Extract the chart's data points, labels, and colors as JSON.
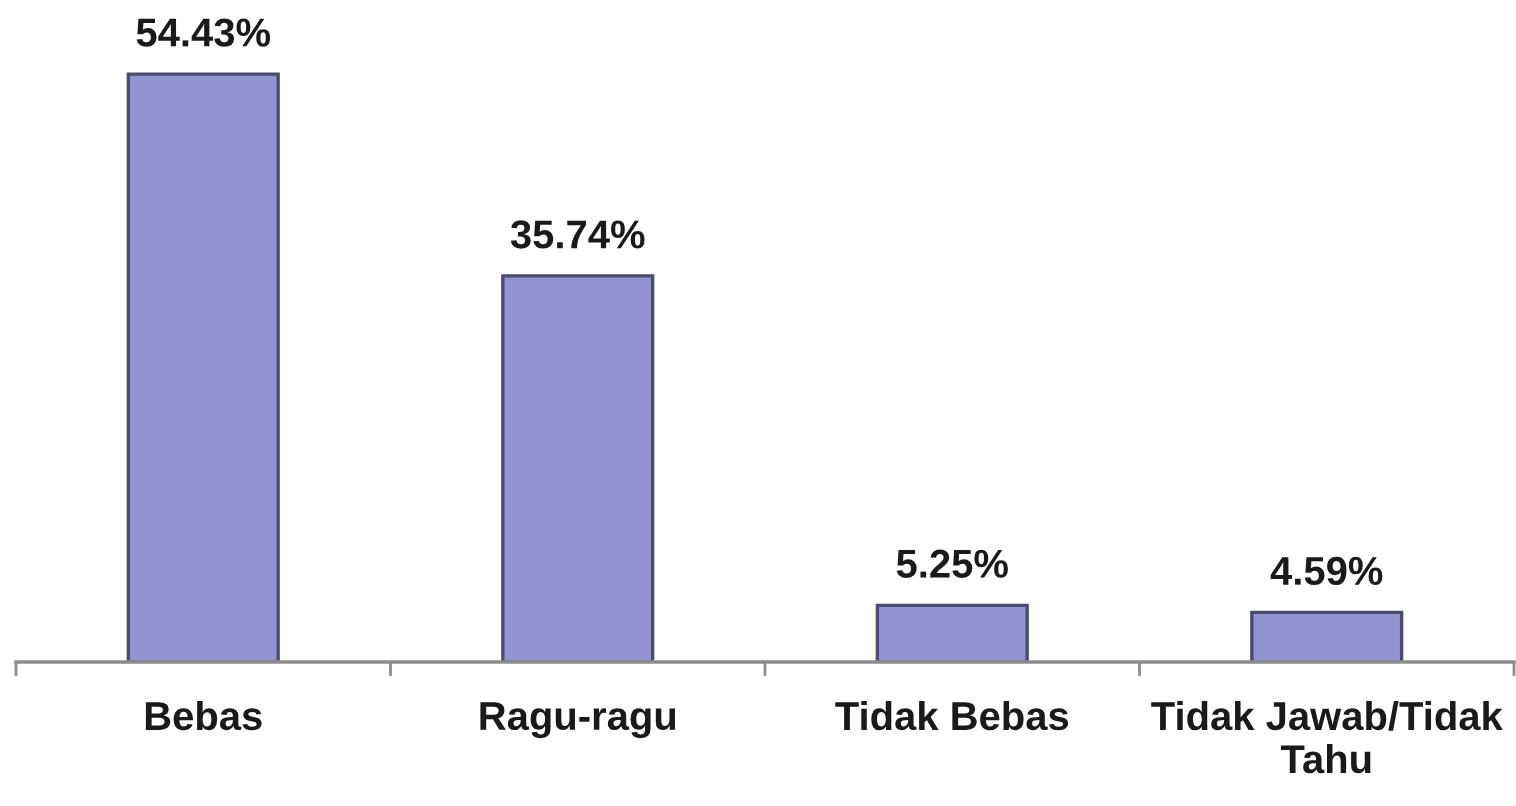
{
  "chart_data": {
    "type": "bar",
    "categories": [
      "Bebas",
      "Ragu-ragu",
      "Tidak Bebas",
      "Tidak Jawab/Tidak\nTahu"
    ],
    "values": [
      54.43,
      35.74,
      5.25,
      4.59
    ],
    "value_labels": [
      "54.43%",
      "35.74%",
      "5.25%",
      "4.59%"
    ],
    "color": "#9393d2"
  }
}
